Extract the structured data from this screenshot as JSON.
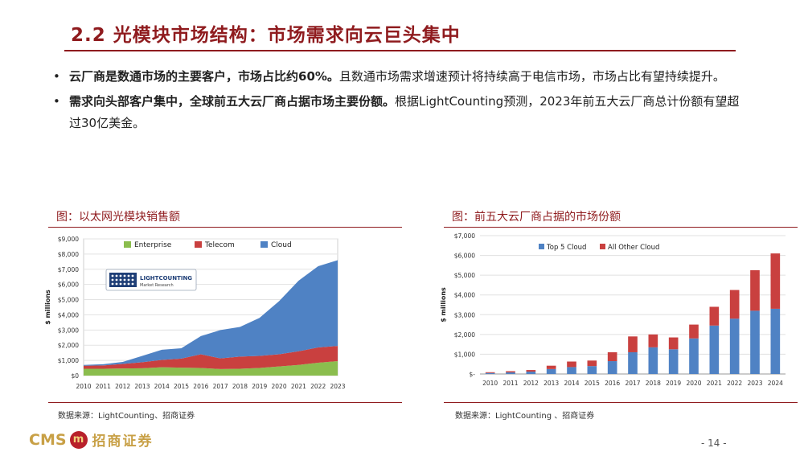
{
  "title": "2.2 光模块市场结构：市场需求向云巨头集中",
  "bullets": [
    {
      "bold": "云厂商是数通市场的主要客户，市场占比约60%。",
      "normal": "且数通市场需求增速预计将持续高于电信市场，市场占比有望持续提升。"
    },
    {
      "bold": "需求向头部客户集中，全球前五大云厂商占据市场主要份额。",
      "normal": "根据LightCounting预测，2023年前五大云厂商总计份额有望超过30亿美金。"
    }
  ],
  "left": {
    "caption": "图：以太网光模块销售额",
    "source": "数据来源：LightCounting、招商证券",
    "logo_main": "LIGHTCOUNTING",
    "logo_sub": "Market Research"
  },
  "right": {
    "caption": "图：前五大云厂商占据的市场份额",
    "source": "数据来源：LightCounting 、招商证券"
  },
  "footer": {
    "brand_en": "CMS",
    "brand_mark": "m",
    "brand_cn": "招商证券",
    "page": "- 14 -"
  },
  "colors": {
    "accent": "#8f1b1e",
    "enterprise": "#8bbd4e",
    "telecom": "#c9403f",
    "cloud": "#4f82c4",
    "top5": "#4f82c4",
    "other": "#c9403f"
  },
  "chart_data": [
    {
      "type": "area",
      "stacked": true,
      "ylabel": "$ millions",
      "ylim": [
        0,
        9000
      ],
      "yticks": [
        "$0",
        "$1,000",
        "$2,000",
        "$3,000",
        "$4,000",
        "$5,000",
        "$6,000",
        "$7,000",
        "$8,000",
        "$9,000"
      ],
      "categories": [
        "2010",
        "2011",
        "2012",
        "2013",
        "2014",
        "2015",
        "2016",
        "2017",
        "2018",
        "2019",
        "2020",
        "2021",
        "2022",
        "2023"
      ],
      "legend_position": "top",
      "series": [
        {
          "name": "Enterprise",
          "color": "#8bbd4e",
          "values": [
            450,
            450,
            470,
            480,
            550,
            520,
            500,
            430,
            450,
            500,
            600,
            700,
            850,
            950
          ]
        },
        {
          "name": "Telecom",
          "color": "#c9403f",
          "values": [
            200,
            220,
            300,
            400,
            480,
            600,
            900,
            700,
            800,
            800,
            800,
            900,
            1000,
            1000
          ]
        },
        {
          "name": "Cloud",
          "color": "#4f82c4",
          "values": [
            50,
            80,
            130,
            420,
            670,
            680,
            1200,
            1870,
            1950,
            2500,
            3500,
            4650,
            5350,
            5650
          ]
        }
      ]
    },
    {
      "type": "bar",
      "stacked": true,
      "ylabel": "$ millions",
      "ylim": [
        0,
        7000
      ],
      "yticks": [
        "$-",
        "$1,000",
        "$2,000",
        "$3,000",
        "$4,000",
        "$5,000",
        "$6,000",
        "$7,000"
      ],
      "categories": [
        "2010",
        "2011",
        "2012",
        "2013",
        "2014",
        "2015",
        "2016",
        "2017",
        "2018",
        "2019",
        "2020",
        "2021",
        "2022",
        "2023",
        "2024"
      ],
      "legend_position": "top",
      "series": [
        {
          "name": "Top 5 Cloud",
          "color": "#4f82c4",
          "values": [
            50,
            80,
            120,
            250,
            350,
            400,
            650,
            1100,
            1350,
            1250,
            1800,
            2450,
            2800,
            3200,
            3300
          ]
        },
        {
          "name": "All Other Cloud",
          "color": "#c9403f",
          "values": [
            40,
            60,
            80,
            170,
            280,
            280,
            450,
            800,
            650,
            600,
            700,
            950,
            1450,
            2050,
            2800
          ]
        }
      ]
    }
  ]
}
